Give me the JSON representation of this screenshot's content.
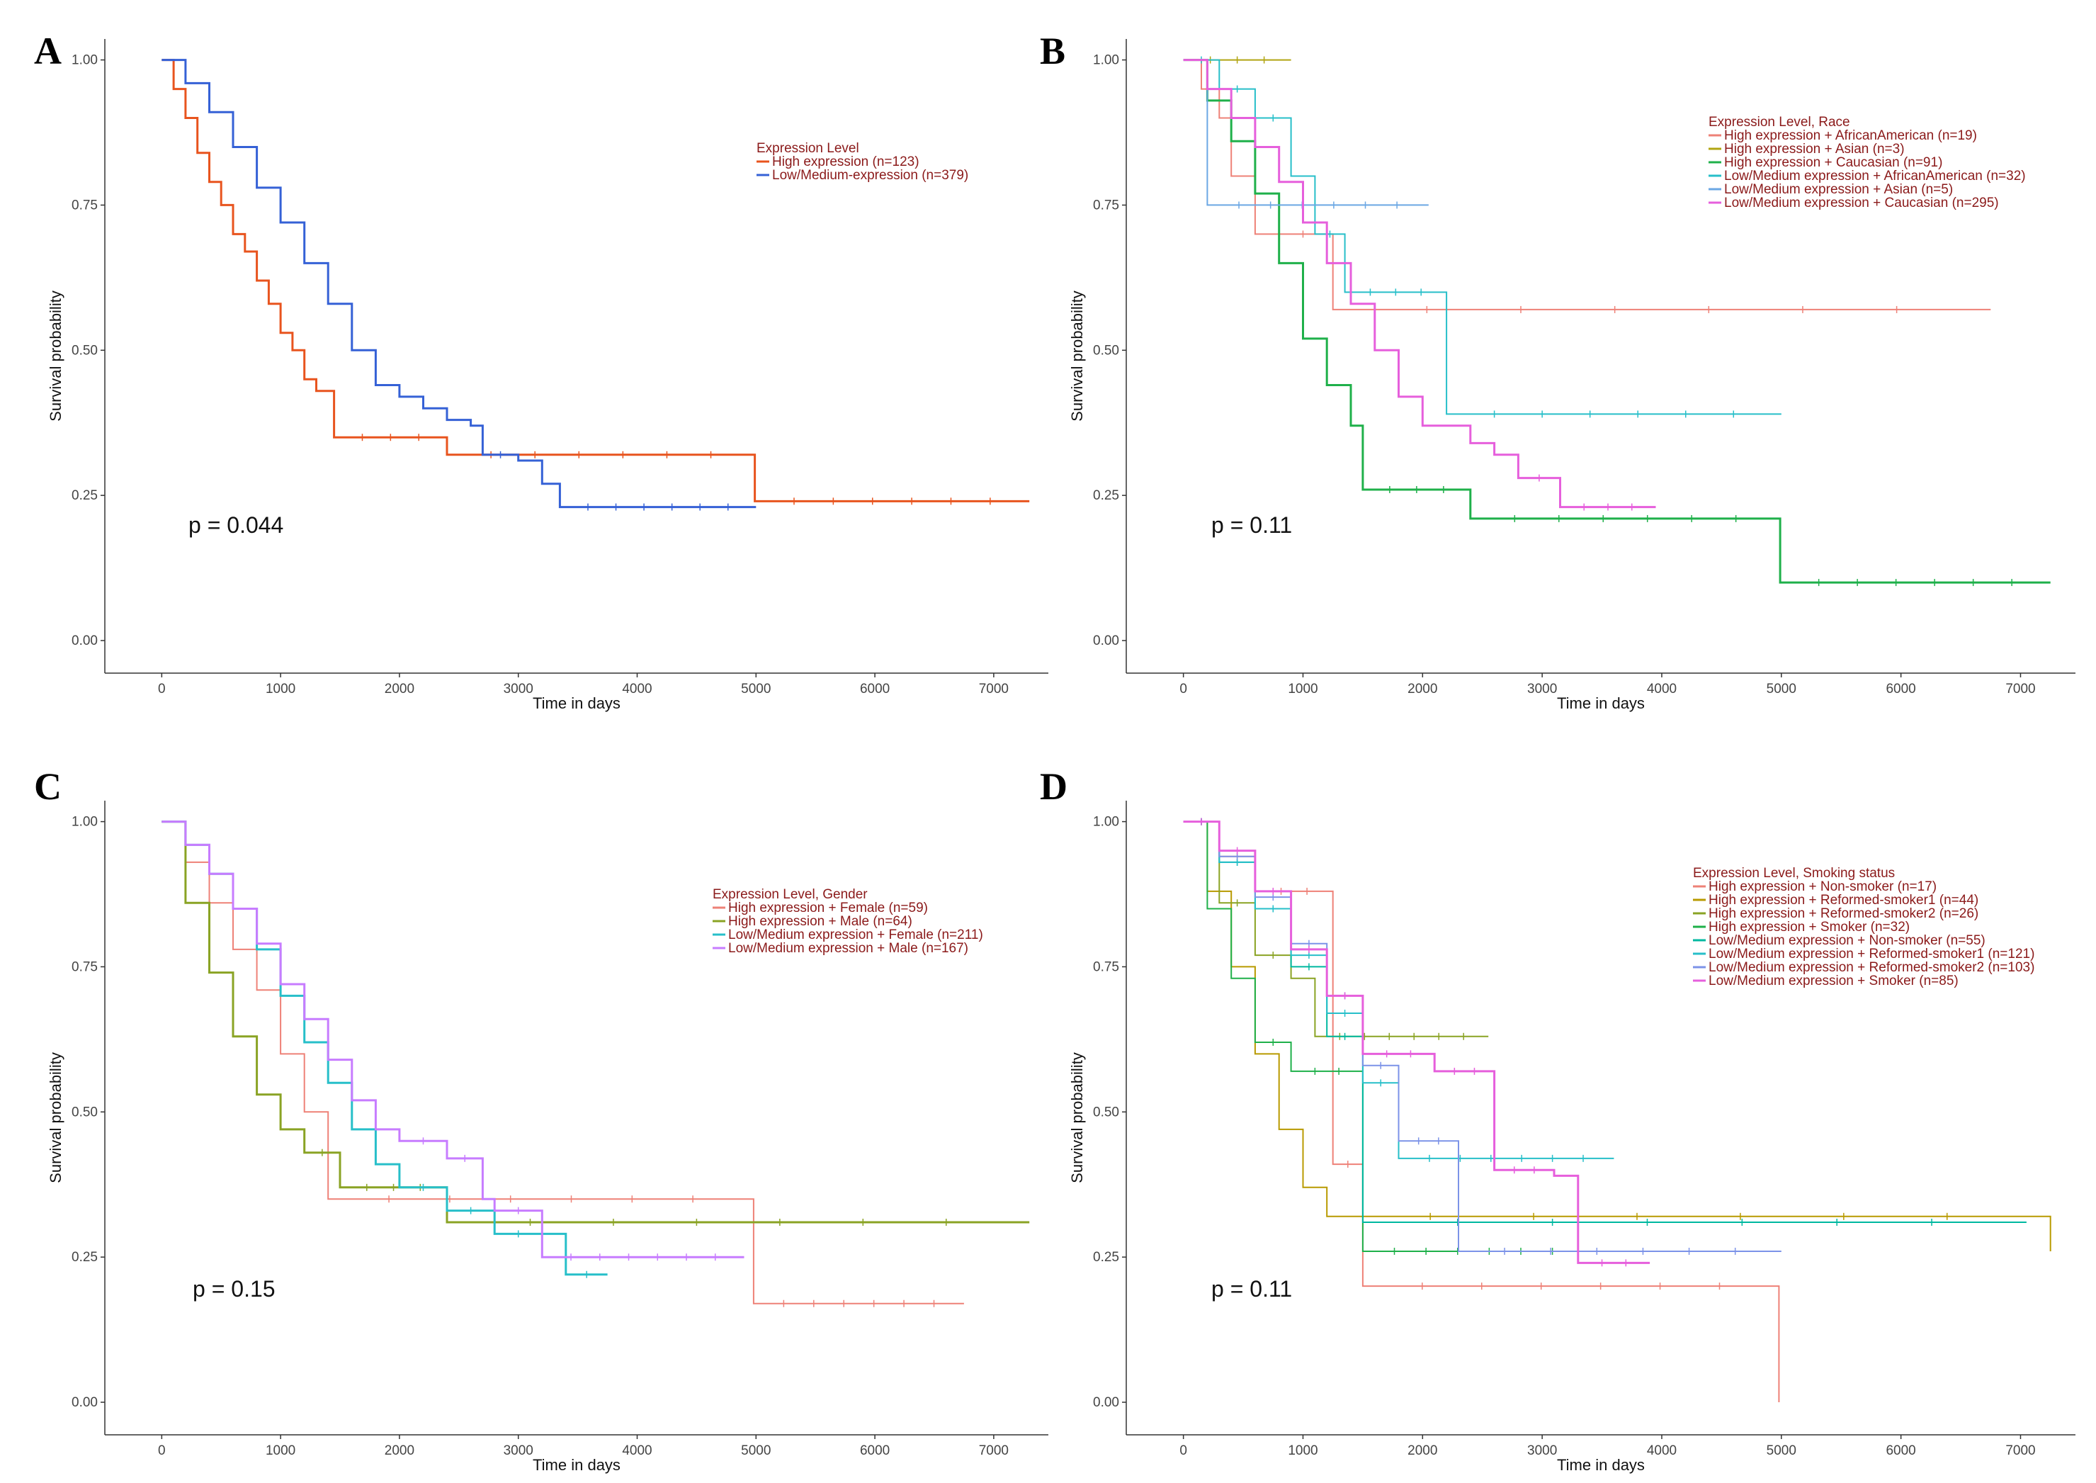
{
  "chart_data": [
    {
      "type": "line",
      "panel": "A",
      "xlabel": "Time in days",
      "ylabel": "Survival probability",
      "xlim": [
        -300,
        7400
      ],
      "ylim": [
        -0.05,
        1.03
      ],
      "xticks": [
        "0",
        "1000",
        "2000",
        "3000",
        "4000",
        "5000",
        "6000",
        "7000"
      ],
      "xtick_values": [
        0,
        1000,
        2000,
        3000,
        4000,
        5000,
        6000,
        7000
      ],
      "yticks": [
        "0.00",
        "0.25",
        "0.50",
        "0.75",
        "1.00"
      ],
      "ytick_values": [
        0,
        0.25,
        0.5,
        0.75,
        1.0
      ],
      "legend_title": "Expression Level",
      "pvalue": "p = 0.044",
      "series": [
        {
          "name": "High expression (n=123)",
          "color": "#e8541e",
          "width": 3,
          "x": [
            0,
            100,
            200,
            300,
            400,
            500,
            600,
            700,
            800,
            900,
            1000,
            1100,
            1200,
            1300,
            1450,
            2400,
            2400,
            4990,
            4990,
            7300
          ],
          "y": [
            1.0,
            0.95,
            0.9,
            0.84,
            0.79,
            0.75,
            0.7,
            0.67,
            0.62,
            0.58,
            0.53,
            0.5,
            0.45,
            0.43,
            0.35,
            0.35,
            0.32,
            0.32,
            0.24,
            0.24
          ]
        },
        {
          "name": "Low/Medium-expression (n=379)",
          "color": "#3561d6",
          "width": 3,
          "x": [
            0,
            200,
            400,
            600,
            800,
            1000,
            1200,
            1400,
            1600,
            1800,
            2000,
            2200,
            2400,
            2600,
            2700,
            3000,
            3200,
            3350,
            5000
          ],
          "y": [
            1.0,
            0.96,
            0.91,
            0.85,
            0.78,
            0.72,
            0.65,
            0.58,
            0.5,
            0.44,
            0.42,
            0.4,
            0.38,
            0.37,
            0.32,
            0.31,
            0.27,
            0.23,
            0.23
          ]
        }
      ]
    },
    {
      "type": "line",
      "panel": "B",
      "xlabel": "Time in days",
      "ylabel": "Survival probability",
      "xlim": [
        -300,
        7400
      ],
      "ylim": [
        -0.05,
        1.03
      ],
      "xticks": [
        "0",
        "1000",
        "2000",
        "3000",
        "4000",
        "5000",
        "6000",
        "7000"
      ],
      "xtick_values": [
        0,
        1000,
        2000,
        3000,
        4000,
        5000,
        6000,
        7000
      ],
      "yticks": [
        "0.00",
        "0.25",
        "0.50",
        "0.75",
        "1.00"
      ],
      "ytick_values": [
        0,
        0.25,
        0.5,
        0.75,
        1.0
      ],
      "legend_title": "Expression Level, Race",
      "pvalue": "p = 0.11",
      "series": [
        {
          "name": "High expression + AfricanAmerican (n=19)",
          "color": "#ee8177",
          "width": 2,
          "x": [
            0,
            150,
            300,
            400,
            600,
            1200,
            1250,
            6750
          ],
          "y": [
            1.0,
            0.95,
            0.9,
            0.8,
            0.7,
            0.7,
            0.57,
            0.57
          ]
        },
        {
          "name": "High expression + Asian (n=3)",
          "color": "#b1a512",
          "width": 2,
          "x": [
            0,
            900
          ],
          "y": [
            1.0,
            1.0
          ]
        },
        {
          "name": "High expression + Caucasian (n=91)",
          "color": "#1fb04a",
          "width": 3,
          "x": [
            0,
            200,
            400,
            600,
            800,
            1000,
            1200,
            1400,
            1500,
            2400,
            2400,
            4990,
            4990,
            7250
          ],
          "y": [
            1.0,
            0.93,
            0.86,
            0.77,
            0.65,
            0.52,
            0.44,
            0.37,
            0.26,
            0.26,
            0.21,
            0.21,
            0.1,
            0.1
          ]
        },
        {
          "name": "Low/Medium expression + AfricanAmerican (n=32)",
          "color": "#27bfc9",
          "width": 2,
          "x": [
            0,
            300,
            600,
            900,
            1100,
            1350,
            2200,
            2200,
            5000
          ],
          "y": [
            1.0,
            0.95,
            0.9,
            0.8,
            0.7,
            0.6,
            0.52,
            0.39,
            0.39
          ]
        },
        {
          "name": "Low/Medium expression + Asian (n=5)",
          "color": "#6ba7e4",
          "width": 2,
          "x": [
            0,
            200,
            200,
            2050
          ],
          "y": [
            1.0,
            1.0,
            0.75,
            0.75
          ]
        },
        {
          "name": "Low/Medium expression + Caucasian (n=295)",
          "color": "#e65fdc",
          "width": 3,
          "x": [
            0,
            200,
            400,
            600,
            800,
            1000,
            1200,
            1400,
            1600,
            1800,
            2000,
            2200,
            2400,
            2600,
            2800,
            3150,
            3950
          ],
          "y": [
            1.0,
            0.95,
            0.9,
            0.85,
            0.79,
            0.72,
            0.65,
            0.58,
            0.5,
            0.42,
            0.37,
            0.37,
            0.34,
            0.32,
            0.28,
            0.23,
            0.23
          ]
        }
      ]
    },
    {
      "type": "line",
      "panel": "C",
      "xlabel": "Time in days",
      "ylabel": "Survival probability",
      "xlim": [
        -300,
        7400
      ],
      "ylim": [
        -0.05,
        1.03
      ],
      "xticks": [
        "0",
        "1000",
        "2000",
        "3000",
        "4000",
        "5000",
        "6000",
        "7000"
      ],
      "xtick_values": [
        0,
        1000,
        2000,
        3000,
        4000,
        5000,
        6000,
        7000
      ],
      "yticks": [
        "0.00",
        "0.25",
        "0.50",
        "0.75",
        "1.00"
      ],
      "ytick_values": [
        0,
        0.25,
        0.5,
        0.75,
        1.0
      ],
      "legend_title": "Expression Level, Gender",
      "pvalue": "p = 0.15",
      "series": [
        {
          "name": "High expression + Female (n=59)",
          "color": "#ee8177",
          "width": 2,
          "x": [
            0,
            200,
            400,
            600,
            800,
            1000,
            1200,
            1400,
            4980,
            4980,
            6750
          ],
          "y": [
            1.0,
            0.93,
            0.86,
            0.78,
            0.71,
            0.6,
            0.5,
            0.35,
            0.35,
            0.17,
            0.17
          ]
        },
        {
          "name": "High expression + Male (n=64)",
          "color": "#8aa324",
          "width": 3,
          "x": [
            0,
            200,
            400,
            600,
            800,
            1000,
            1200,
            1500,
            2400,
            2400,
            7300
          ],
          "y": [
            1.0,
            0.86,
            0.74,
            0.63,
            0.53,
            0.47,
            0.43,
            0.37,
            0.37,
            0.31,
            0.31
          ]
        },
        {
          "name": "Low/Medium expression + Female (n=211)",
          "color": "#27bfc9",
          "width": 3,
          "x": [
            0,
            200,
            400,
            600,
            800,
            1000,
            1200,
            1400,
            1600,
            1800,
            2000,
            2400,
            2800,
            3400,
            3400,
            3750
          ],
          "y": [
            1.0,
            0.96,
            0.91,
            0.85,
            0.78,
            0.7,
            0.62,
            0.55,
            0.47,
            0.41,
            0.37,
            0.33,
            0.29,
            0.29,
            0.22,
            0.22
          ]
        },
        {
          "name": "Low/Medium expression + Male (n=167)",
          "color": "#c77cff",
          "width": 3,
          "x": [
            0,
            200,
            400,
            600,
            800,
            1000,
            1200,
            1400,
            1600,
            1800,
            2000,
            2400,
            2700,
            2800,
            3200,
            3200,
            4900
          ],
          "y": [
            1.0,
            0.96,
            0.91,
            0.85,
            0.79,
            0.72,
            0.66,
            0.59,
            0.52,
            0.47,
            0.45,
            0.42,
            0.35,
            0.33,
            0.32,
            0.25,
            0.25
          ]
        }
      ]
    },
    {
      "type": "line",
      "panel": "D",
      "xlabel": "Time in days",
      "ylabel": "Survival probability",
      "xlim": [
        -300,
        7400
      ],
      "ylim": [
        -0.05,
        1.03
      ],
      "xticks": [
        "0",
        "1000",
        "2000",
        "3000",
        "4000",
        "5000",
        "6000",
        "7000"
      ],
      "xtick_values": [
        0,
        1000,
        2000,
        3000,
        4000,
        5000,
        6000,
        7000
      ],
      "yticks": [
        "0.00",
        "0.25",
        "0.50",
        "0.75",
        "1.00"
      ],
      "ytick_values": [
        0,
        0.25,
        0.5,
        0.75,
        1.0
      ],
      "legend_title": "Expression Level, Smoking status",
      "pvalue": "p = 0.11",
      "series": [
        {
          "name": "High expression + Non-smoker (n=17)",
          "color": "#ee8177",
          "width": 2,
          "x": [
            0,
            300,
            600,
            1250,
            1250,
            1500,
            1500,
            4980,
            4980
          ],
          "y": [
            1.0,
            0.94,
            0.88,
            0.82,
            0.41,
            0.41,
            0.2,
            0.2,
            0.0
          ]
        },
        {
          "name": "High expression + Reformed-smoker1 (n=44)",
          "color": "#b89a00",
          "width": 2,
          "x": [
            0,
            200,
            400,
            600,
            800,
            1000,
            1200,
            7250
          ],
          "y": [
            1.0,
            0.88,
            0.75,
            0.6,
            0.47,
            0.37,
            0.32,
            0.26
          ]
        },
        {
          "name": "High expression + Reformed-smoker2 (n=26)",
          "color": "#8aa324",
          "width": 2,
          "x": [
            0,
            300,
            600,
            900,
            1100,
            2550
          ],
          "y": [
            1.0,
            0.86,
            0.77,
            0.73,
            0.63,
            0.63
          ]
        },
        {
          "name": "High expression + Smoker (n=32)",
          "color": "#1fb04a",
          "width": 2,
          "x": [
            0,
            200,
            400,
            600,
            900,
            1500,
            1500,
            3350
          ],
          "y": [
            1.0,
            0.85,
            0.73,
            0.62,
            0.57,
            0.41,
            0.26,
            0.26
          ]
        },
        {
          "name": "Low/Medium expression + Non-smoker (n=55)",
          "color": "#00b8a0",
          "width": 2,
          "x": [
            0,
            300,
            600,
            900,
            1200,
            1500,
            1500,
            7050
          ],
          "y": [
            1.0,
            0.93,
            0.85,
            0.75,
            0.63,
            0.51,
            0.31,
            0.31
          ]
        },
        {
          "name": "Low/Medium expression + Reformed-smoker1 (n=121)",
          "color": "#27bfc9",
          "width": 2,
          "x": [
            0,
            300,
            600,
            900,
            1200,
            1500,
            1800,
            3600
          ],
          "y": [
            1.0,
            0.93,
            0.85,
            0.77,
            0.67,
            0.55,
            0.42,
            0.42
          ]
        },
        {
          "name": "Low/Medium expression + Reformed-smoker2 (n=103)",
          "color": "#7c93e8",
          "width": 2,
          "x": [
            0,
            300,
            600,
            900,
            1200,
            1500,
            1800,
            2300,
            5000
          ],
          "y": [
            1.0,
            0.94,
            0.87,
            0.79,
            0.7,
            0.58,
            0.45,
            0.26,
            0.26
          ]
        },
        {
          "name": "Low/Medium expression + Smoker (n=85)",
          "color": "#e65fdc",
          "width": 3,
          "x": [
            0,
            300,
            600,
            900,
            1200,
            1500,
            2100,
            2600,
            2600,
            3100,
            3300,
            3900
          ],
          "y": [
            1.0,
            0.95,
            0.88,
            0.78,
            0.7,
            0.6,
            0.57,
            0.48,
            0.4,
            0.39,
            0.24,
            0.24
          ]
        }
      ]
    }
  ]
}
